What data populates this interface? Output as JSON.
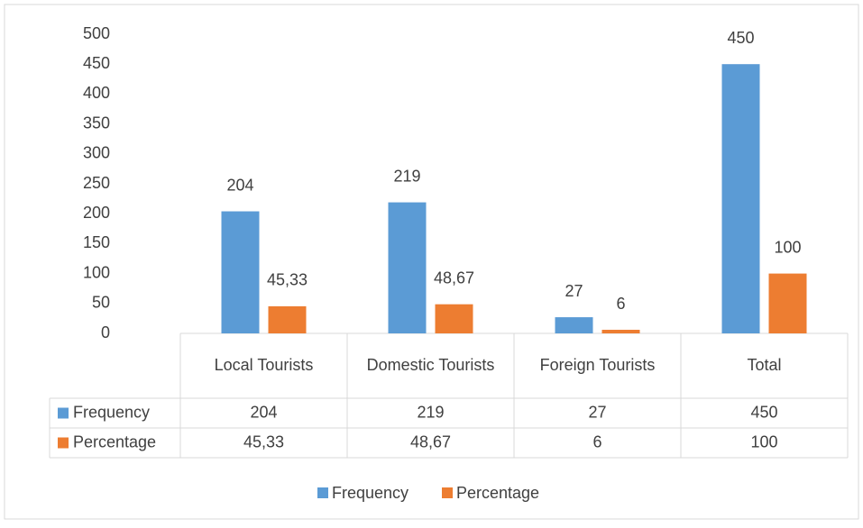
{
  "chart_data": {
    "type": "bar",
    "categories": [
      "Local Tourists",
      "Domestic Tourists",
      "Foreign Tourists",
      "Total"
    ],
    "series": [
      {
        "name": "Frequency",
        "color": "#5b9bd5",
        "values": [
          204,
          219,
          27,
          450
        ]
      },
      {
        "name": "Percentage",
        "color": "#ed7d31",
        "values": [
          45.33,
          48.67,
          6,
          100
        ],
        "value_labels": [
          "45,33",
          "48,67",
          "6",
          "100"
        ]
      }
    ],
    "ylim": [
      0,
      500
    ],
    "yticks": [
      0,
      50,
      100,
      150,
      200,
      250,
      300,
      350,
      400,
      450,
      500
    ],
    "grid": false,
    "legend": "bottom",
    "data_table": true
  }
}
